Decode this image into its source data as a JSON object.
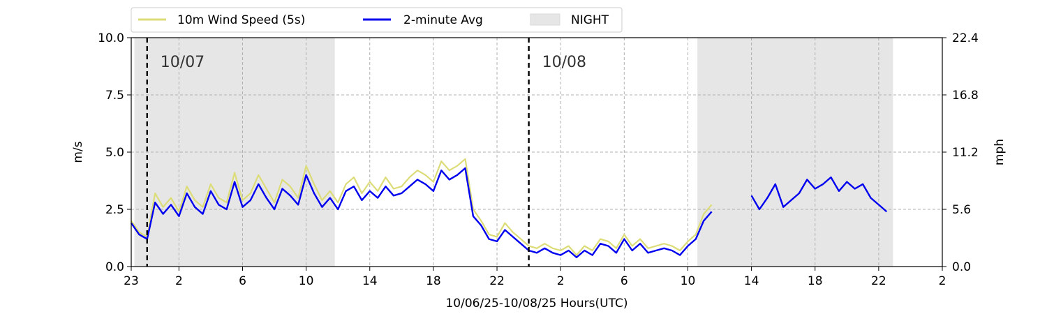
{
  "chart_data": {
    "type": "line",
    "xlabel": "10/06/25-10/08/25  Hours(UTC)",
    "ylabel": "m/s",
    "ylabel_right": "mph",
    "xlim": [
      0,
      51
    ],
    "ylim": [
      0,
      10
    ],
    "y2lim": [
      0,
      22.4
    ],
    "x_ticks": [
      0,
      3,
      7,
      11,
      15,
      19,
      23,
      27,
      31,
      35,
      39,
      43,
      47,
      51
    ],
    "x_tick_labels": [
      "23",
      "2",
      "6",
      "10",
      "14",
      "18",
      "22",
      "2",
      "6",
      "10",
      "14",
      "18",
      "22",
      "2"
    ],
    "y_ticks": [
      0,
      2.5,
      5,
      7.5,
      10
    ],
    "y_tick_labels": [
      "0.0",
      "2.5",
      "5.0",
      "7.5",
      "10.0"
    ],
    "y2_ticks": [
      0,
      5.6,
      11.2,
      16.8,
      22.4
    ],
    "y2_tick_labels": [
      "0.0",
      "5.6",
      "11.2",
      "16.8",
      "22.4"
    ],
    "grid": true,
    "legend_position": "top",
    "night_periods": [
      [
        0.2,
        12.8
      ],
      [
        35.6,
        47.9
      ]
    ],
    "day_markers": [
      {
        "x": 1,
        "label": "10/07"
      },
      {
        "x": 25,
        "label": "10/08"
      }
    ],
    "legend": [
      {
        "name": "10m Wind Speed (5s)",
        "color": "#dcdc78",
        "kind": "line"
      },
      {
        "name": "2-minute Avg",
        "color": "#0000ee",
        "kind": "line"
      },
      {
        "name": "NIGHT",
        "color": "#e6e6e6",
        "kind": "patch"
      }
    ],
    "series": [
      {
        "name": "10m Wind Speed (5s)",
        "color": "#dcdc78",
        "segments": [
          {
            "x": [
              0,
              0.5,
              1,
              1.5,
              2,
              2.5,
              3,
              3.5,
              4,
              4.5,
              5,
              5.5,
              6,
              6.5,
              7,
              7.5,
              8,
              8.5,
              9,
              9.5,
              10,
              10.5,
              11,
              11.5,
              12,
              12.5,
              13,
              13.5,
              14,
              14.5,
              15,
              15.5,
              16,
              16.5,
              17,
              17.5,
              18,
              18.5,
              19,
              19.5,
              20,
              20.5,
              21,
              21.5,
              22,
              22.5,
              23,
              23.5,
              24,
              24.5,
              25,
              25.5,
              26,
              26.5,
              27,
              27.5,
              28,
              28.5,
              29,
              29.5,
              30,
              30.5,
              31,
              31.5,
              32,
              32.5,
              33,
              33.5,
              34,
              34.5,
              35,
              35.5,
              36,
              36.5
            ],
            "y": [
              2.0,
              1.5,
              1.3,
              3.2,
              2.6,
              3.0,
              2.4,
              3.5,
              2.9,
              2.6,
              3.6,
              3.0,
              2.8,
              4.1,
              2.9,
              3.2,
              4.0,
              3.4,
              2.8,
              3.8,
              3.5,
              3.0,
              4.4,
              3.6,
              2.9,
              3.3,
              2.8,
              3.6,
              3.9,
              3.2,
              3.7,
              3.3,
              3.9,
              3.4,
              3.5,
              3.9,
              4.2,
              4.0,
              3.7,
              4.6,
              4.2,
              4.4,
              4.7,
              2.5,
              2.0,
              1.4,
              1.3,
              1.9,
              1.5,
              1.2,
              0.9,
              0.8,
              1.0,
              0.8,
              0.7,
              0.9,
              0.5,
              0.9,
              0.7,
              1.2,
              1.1,
              0.8,
              1.4,
              0.9,
              1.2,
              0.8,
              0.9,
              1.0,
              0.9,
              0.7,
              1.1,
              1.4,
              2.3,
              2.7
            ]
          }
        ]
      },
      {
        "name": "2-minute Avg",
        "color": "#0000ee",
        "segments": [
          {
            "x": [
              0,
              0.5,
              1,
              1.5,
              2,
              2.5,
              3,
              3.5,
              4,
              4.5,
              5,
              5.5,
              6,
              6.5,
              7,
              7.5,
              8,
              8.5,
              9,
              9.5,
              10,
              10.5,
              11,
              11.5,
              12,
              12.5,
              13,
              13.5,
              14,
              14.5,
              15,
              15.5,
              16,
              16.5,
              17,
              17.5,
              18,
              18.5,
              19,
              19.5,
              20,
              20.5,
              21,
              21.5,
              22,
              22.5,
              23,
              23.5,
              24,
              24.5,
              25,
              25.5,
              26,
              26.5,
              27,
              27.5,
              28,
              28.5,
              29,
              29.5,
              30,
              30.5,
              31,
              31.5,
              32,
              32.5,
              33,
              33.5,
              34,
              34.5,
              35,
              35.5,
              36,
              36.5
            ],
            "y": [
              1.9,
              1.4,
              1.2,
              2.8,
              2.3,
              2.7,
              2.2,
              3.2,
              2.6,
              2.3,
              3.3,
              2.7,
              2.5,
              3.7,
              2.6,
              2.9,
              3.6,
              3.0,
              2.5,
              3.4,
              3.1,
              2.7,
              4.0,
              3.2,
              2.6,
              3.0,
              2.5,
              3.3,
              3.5,
              2.9,
              3.3,
              3.0,
              3.5,
              3.1,
              3.2,
              3.5,
              3.8,
              3.6,
              3.3,
              4.2,
              3.8,
              4.0,
              4.3,
              2.2,
              1.8,
              1.2,
              1.1,
              1.6,
              1.3,
              1.0,
              0.7,
              0.6,
              0.8,
              0.6,
              0.5,
              0.7,
              0.4,
              0.7,
              0.5,
              1.0,
              0.9,
              0.6,
              1.2,
              0.7,
              1.0,
              0.6,
              0.7,
              0.8,
              0.7,
              0.5,
              0.9,
              1.2,
              2.0,
              2.4
            ]
          },
          {
            "x": [
              39.0,
              39.5,
              40,
              40.5,
              41,
              41.5,
              42,
              42.5,
              43,
              43.5,
              44,
              44.5,
              45,
              45.5,
              46,
              46.5,
              47,
              47.5
            ],
            "y": [
              3.1,
              2.5,
              3.0,
              3.6,
              2.6,
              2.9,
              3.2,
              3.8,
              3.4,
              3.6,
              3.9,
              3.3,
              3.7,
              3.4,
              3.6,
              3.0,
              2.7,
              2.4
            ]
          }
        ]
      }
    ]
  }
}
